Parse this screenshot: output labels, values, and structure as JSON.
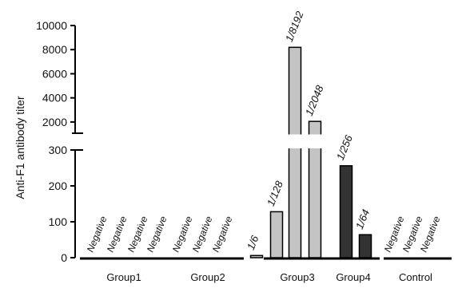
{
  "chart_data": {
    "type": "bar",
    "axis_break": true,
    "ylabel": "Anti-F1 antibody titer",
    "xlabel": "",
    "ylim_lower": [
      0,
      300
    ],
    "ylim_upper": [
      1000,
      10000
    ],
    "yticks_lower": [
      "0",
      "100",
      "200",
      "300"
    ],
    "yticks_upper": [
      "2000",
      "4000",
      "6000",
      "8000",
      "10000"
    ],
    "groups": [
      {
        "name": "Group1",
        "bars": [
          {
            "label": "Negative",
            "value": 0
          },
          {
            "label": "Negative",
            "value": 0
          },
          {
            "label": "Negative",
            "value": 0
          },
          {
            "label": "Negative",
            "value": 0
          }
        ]
      },
      {
        "name": "Group2",
        "bars": [
          {
            "label": "Negative",
            "value": 0
          },
          {
            "label": "Negative",
            "value": 0
          },
          {
            "label": "Negative",
            "value": 0
          }
        ]
      },
      {
        "name": "Group3",
        "bars": [
          {
            "label": "1/6",
            "value": 6
          },
          {
            "label": "1/128",
            "value": 128
          },
          {
            "label": "1/8192",
            "value": 8192
          },
          {
            "label": "1/2048",
            "value": 2048
          }
        ]
      },
      {
        "name": "Group4",
        "bars": [
          {
            "label": "1/256",
            "value": 256
          },
          {
            "label": "1/64",
            "value": 64
          }
        ]
      },
      {
        "name": "Control",
        "bars": [
          {
            "label": "Negative",
            "value": 0
          },
          {
            "label": "Negative",
            "value": 0
          },
          {
            "label": "Negative",
            "value": 0
          }
        ]
      }
    ]
  },
  "colors": {
    "group3_bar": "#c4c4c4",
    "group4_bar": "#333333",
    "axis": "#000000",
    "label_text": "#111111"
  }
}
